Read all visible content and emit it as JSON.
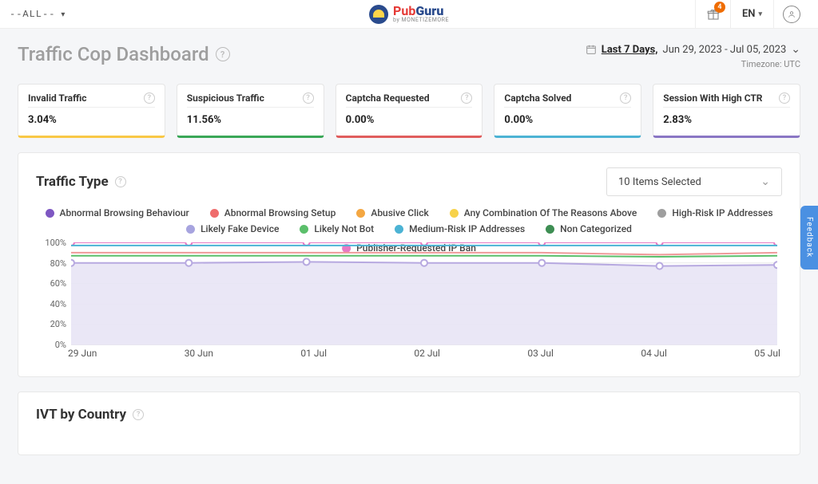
{
  "topbar": {
    "domain_selector": "--ALL--",
    "logo_main_a": "Pub",
    "logo_main_b": "Guru",
    "logo_sub": "by MONETIZEMORE",
    "gift_badge": "4",
    "language": "EN"
  },
  "header": {
    "title": "Traffic Cop Dashboard",
    "date_label": "Last 7 Days,",
    "date_range": "Jun 29, 2023 - Jul 05, 2023",
    "timezone": "Timezone: UTC"
  },
  "cards": [
    {
      "title": "Invalid Traffic",
      "value": "3.04%",
      "color": "#f9c846"
    },
    {
      "title": "Suspicious Traffic",
      "value": "11.56%",
      "color": "#3aa757"
    },
    {
      "title": "Captcha Requested",
      "value": "0.00%",
      "color": "#e05d5d"
    },
    {
      "title": "Captcha Solved",
      "value": "0.00%",
      "color": "#4cb3d4"
    },
    {
      "title": "Session With High CTR",
      "value": "2.83%",
      "color": "#8a76c4"
    }
  ],
  "traffic_type_panel": {
    "title": "Traffic Type",
    "selector_label": "10 Items Selected",
    "legend": [
      {
        "label": "Abnormal Browsing Behaviour",
        "color": "#7e57c2"
      },
      {
        "label": "Abnormal Browsing Setup",
        "color": "#ef6c6c"
      },
      {
        "label": "Abusive Click",
        "color": "#f4a742"
      },
      {
        "label": "Any Combination Of The Reasons Above",
        "color": "#f7d24a"
      },
      {
        "label": "High-Risk IP Addresses",
        "color": "#9e9e9e"
      },
      {
        "label": "Likely Fake Device",
        "color": "#a7a4df"
      },
      {
        "label": "Likely Not Bot",
        "color": "#5bbf6b"
      },
      {
        "label": "Medium-Risk IP Addresses",
        "color": "#4cb3d4"
      },
      {
        "label": "Non Categorized",
        "color": "#3e8e53"
      },
      {
        "label": "Publisher-Requested IP Ban",
        "color": "#e879c4"
      }
    ],
    "chart": {
      "x_labels": [
        "29 Jun",
        "30 Jun",
        "01 Jul",
        "02 Jul",
        "03 Jul",
        "04 Jul",
        "05 Jul"
      ],
      "y_ticks": [
        100,
        80,
        60,
        40,
        20,
        0
      ],
      "ylim": [
        0,
        100
      ],
      "background": "#f0eef9",
      "grid_color": "#e8e8e8",
      "area_fill": "#e8e4f5",
      "series": [
        {
          "color": "#e879c4",
          "values": [
            100,
            100,
            100,
            100,
            100,
            100,
            100
          ],
          "marker": true
        },
        {
          "color": "#4cb3d4",
          "values": [
            97,
            97,
            97,
            97,
            97,
            97,
            97
          ],
          "marker": false
        },
        {
          "color": "#ef9a9a",
          "values": [
            90,
            90,
            90,
            90,
            90,
            88,
            90
          ],
          "marker": false
        },
        {
          "color": "#5bbf6b",
          "values": [
            87,
            87,
            87,
            87,
            87,
            86,
            87
          ],
          "marker": false
        },
        {
          "color": "#b7a9e0",
          "values": [
            80,
            80,
            81,
            80,
            80,
            77,
            78
          ],
          "marker": true,
          "area": true
        }
      ]
    }
  },
  "ivt_panel": {
    "title": "IVT by Country"
  },
  "feedback": "Feedback"
}
